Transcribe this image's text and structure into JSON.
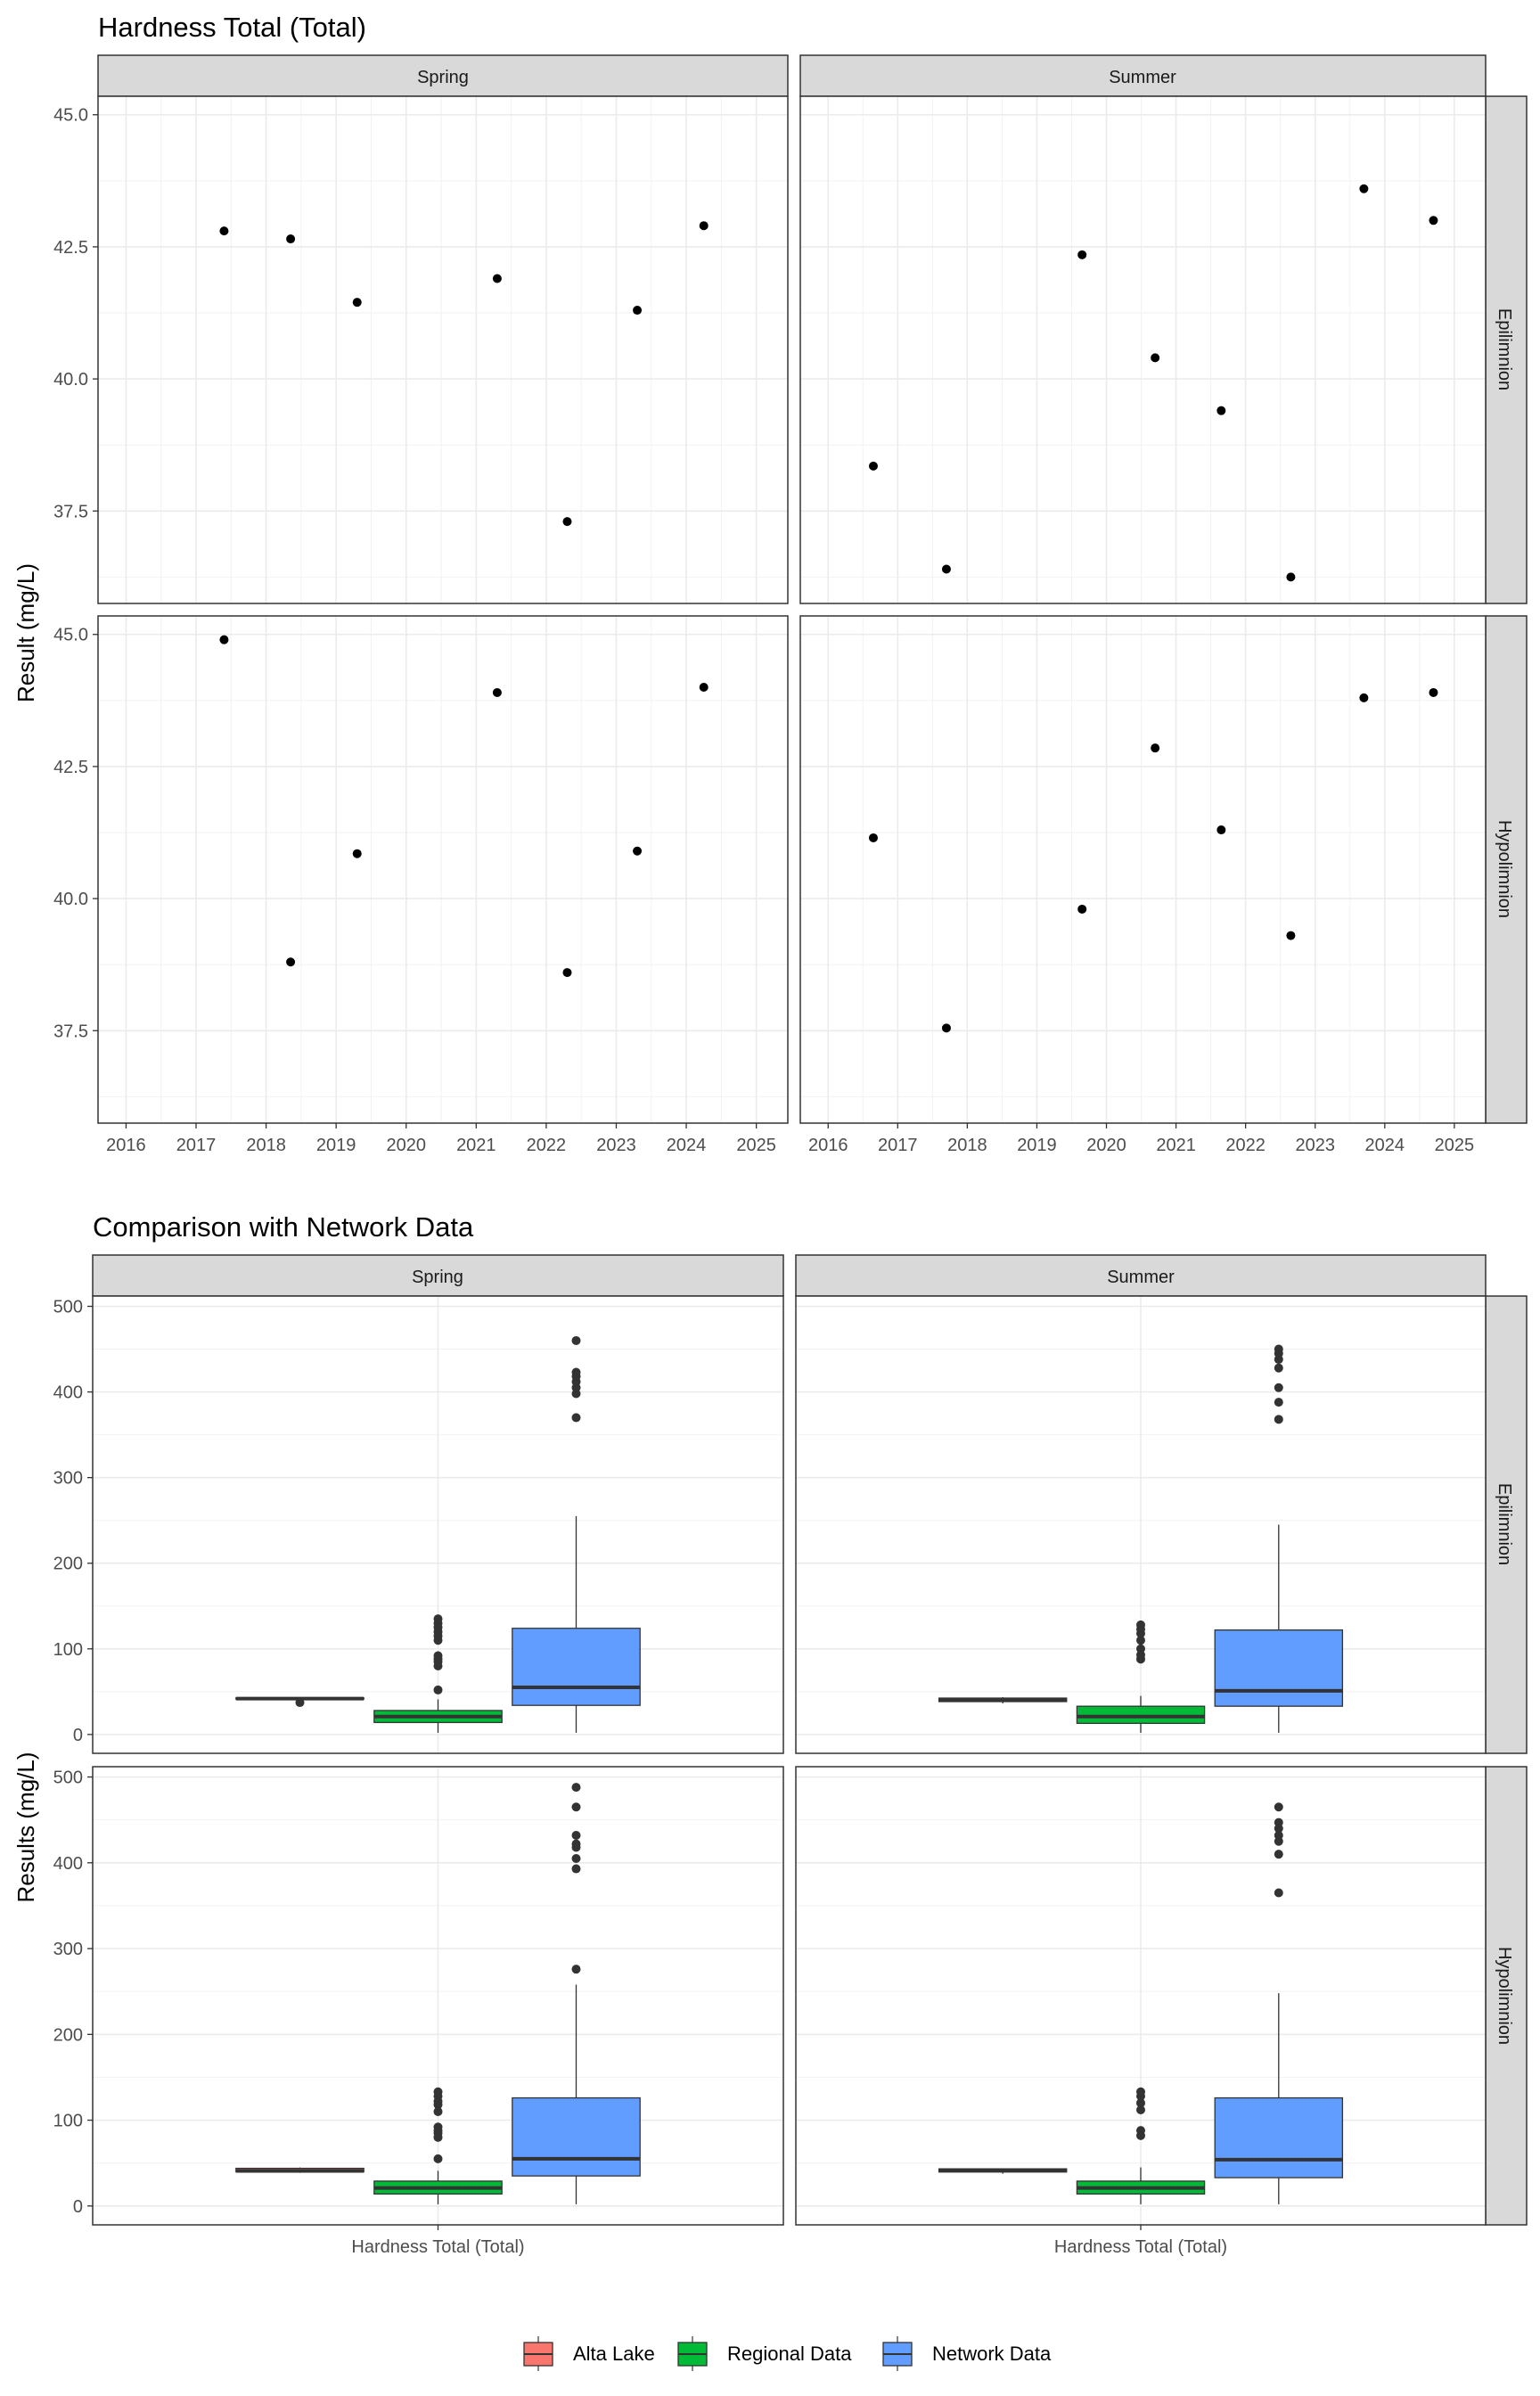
{
  "chart_data": [
    {
      "type": "scatter",
      "title": "Hardness Total (Total)",
      "ylabel": "Result (mg/L)",
      "xlabel": "",
      "x_ticks": [
        "2016",
        "2017",
        "2018",
        "2019",
        "2020",
        "2021",
        "2022",
        "2023",
        "2024",
        "2025"
      ],
      "y_ticks": [
        "37.5",
        "40.0",
        "42.5",
        "45.0"
      ],
      "xlim": [
        2015.6,
        2025.45
      ],
      "ylim": [
        35.75,
        45.35
      ],
      "grid": true,
      "columns": [
        "Spring",
        "Summer"
      ],
      "rows": [
        "Epilimnion",
        "Hypolimnion"
      ],
      "panels": [
        {
          "column": "Spring",
          "row": "Epilimnion",
          "points": [
            {
              "x": 2017.4,
              "y": 42.8
            },
            {
              "x": 2018.35,
              "y": 42.65
            },
            {
              "x": 2019.3,
              "y": 41.45
            },
            {
              "x": 2021.3,
              "y": 41.9
            },
            {
              "x": 2022.3,
              "y": 37.3
            },
            {
              "x": 2023.3,
              "y": 41.3
            },
            {
              "x": 2024.25,
              "y": 42.9
            }
          ]
        },
        {
          "column": "Summer",
          "row": "Epilimnion",
          "points": [
            {
              "x": 2016.65,
              "y": 38.35
            },
            {
              "x": 2017.7,
              "y": 36.4
            },
            {
              "x": 2019.65,
              "y": 42.35
            },
            {
              "x": 2020.7,
              "y": 40.4
            },
            {
              "x": 2021.65,
              "y": 39.4
            },
            {
              "x": 2022.65,
              "y": 36.25
            },
            {
              "x": 2023.7,
              "y": 43.6
            },
            {
              "x": 2024.7,
              "y": 43.0
            }
          ]
        },
        {
          "column": "Spring",
          "row": "Hypolimnion",
          "points": [
            {
              "x": 2017.4,
              "y": 44.9
            },
            {
              "x": 2018.35,
              "y": 38.8
            },
            {
              "x": 2019.3,
              "y": 40.85
            },
            {
              "x": 2021.3,
              "y": 43.9
            },
            {
              "x": 2022.3,
              "y": 38.6
            },
            {
              "x": 2023.3,
              "y": 40.9
            },
            {
              "x": 2024.25,
              "y": 44.0
            }
          ]
        },
        {
          "column": "Summer",
          "row": "Hypolimnion",
          "points": [
            {
              "x": 2016.65,
              "y": 41.15
            },
            {
              "x": 2017.7,
              "y": 37.55
            },
            {
              "x": 2019.65,
              "y": 39.8
            },
            {
              "x": 2020.7,
              "y": 42.85
            },
            {
              "x": 2021.65,
              "y": 41.3
            },
            {
              "x": 2022.65,
              "y": 39.3
            },
            {
              "x": 2023.7,
              "y": 43.8
            },
            {
              "x": 2024.7,
              "y": 43.9
            }
          ]
        }
      ]
    },
    {
      "type": "box",
      "title": "Comparison with Network Data",
      "ylabel": "Results (mg/L)",
      "xlabel": "",
      "category": "Hardness Total (Total)",
      "y_ticks": [
        "0",
        "100",
        "200",
        "300",
        "400",
        "500"
      ],
      "ylim": [
        -22,
        512
      ],
      "grid": true,
      "columns": [
        "Spring",
        "Summer"
      ],
      "rows": [
        "Epilimnion",
        "Hypolimnion"
      ],
      "legend_position": "bottom",
      "series": [
        {
          "name": "Alta Lake",
          "color": "#F8766D"
        },
        {
          "name": "Regional Data",
          "color": "#00BA38"
        },
        {
          "name": "Network Data",
          "color": "#619CFF"
        }
      ],
      "panels": [
        {
          "column": "Spring",
          "row": "Epilimnion",
          "boxes": [
            {
              "series": "Alta Lake",
              "min": 41.3,
              "q1": 41.3,
              "median": 41.9,
              "q3": 42.7,
              "max": 42.9,
              "outliers": [
                37.3
              ]
            },
            {
              "series": "Regional Data",
              "min": 2,
              "q1": 14,
              "median": 21,
              "q3": 28,
              "max": 41,
              "outliers": [
                52,
                80,
                85,
                88,
                92,
                110,
                115,
                120,
                125,
                130,
                135
              ]
            },
            {
              "series": "Network Data",
              "min": 2,
              "q1": 34,
              "median": 55,
              "q3": 124,
              "max": 255,
              "outliers": [
                370,
                398,
                405,
                412,
                418,
                423,
                460
              ]
            }
          ]
        },
        {
          "column": "Summer",
          "row": "Epilimnion",
          "boxes": [
            {
              "series": "Alta Lake",
              "min": 36.3,
              "q1": 38.4,
              "median": 39.9,
              "q3": 42.5,
              "max": 43.6,
              "outliers": []
            },
            {
              "series": "Regional Data",
              "min": 2,
              "q1": 13,
              "median": 21,
              "q3": 33,
              "max": 45,
              "outliers": [
                88,
                93,
                100,
                110,
                118,
                123,
                128
              ]
            },
            {
              "series": "Network Data",
              "min": 2,
              "q1": 33,
              "median": 51,
              "q3": 122,
              "max": 245,
              "outliers": [
                368,
                388,
                405,
                428,
                438,
                445,
                450
              ]
            }
          ]
        },
        {
          "column": "Spring",
          "row": "Hypolimnion",
          "boxes": [
            {
              "series": "Alta Lake",
              "min": 38.6,
              "q1": 39.8,
              "median": 40.9,
              "q3": 43.9,
              "max": 44.9,
              "outliers": []
            },
            {
              "series": "Regional Data",
              "min": 2,
              "q1": 14,
              "median": 21,
              "q3": 29,
              "max": 41,
              "outliers": [
                55,
                80,
                85,
                88,
                92,
                110,
                118,
                122,
                128,
                133
              ]
            },
            {
              "series": "Network Data",
              "min": 2,
              "q1": 35,
              "median": 55,
              "q3": 126,
              "max": 258,
              "outliers": [
                276,
                393,
                405,
                418,
                422,
                432,
                465,
                488
              ]
            }
          ]
        },
        {
          "column": "Summer",
          "row": "Hypolimnion",
          "boxes": [
            {
              "series": "Alta Lake",
              "min": 37.6,
              "q1": 39.6,
              "median": 41.2,
              "q3": 43.3,
              "max": 43.9,
              "outliers": []
            },
            {
              "series": "Regional Data",
              "min": 2,
              "q1": 14,
              "median": 21,
              "q3": 29,
              "max": 45,
              "outliers": [
                82,
                88,
                112,
                120,
                128,
                133
              ]
            },
            {
              "series": "Network Data",
              "min": 2,
              "q1": 33,
              "median": 54,
              "q3": 126,
              "max": 248,
              "outliers": [
                365,
                410,
                425,
                432,
                440,
                447,
                465
              ]
            }
          ]
        }
      ]
    }
  ]
}
